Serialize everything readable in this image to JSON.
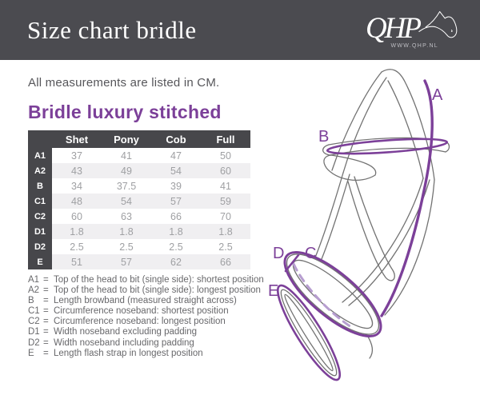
{
  "header": {
    "title": "Size chart bridle",
    "logo_text": "QHP",
    "logo_subtext": "WWW.QHP.NL"
  },
  "intro_text": "All measurements are listed in CM.",
  "section_title": "Bridle luxury stitched",
  "chart_data": {
    "type": "table",
    "title": "Bridle luxury stitched",
    "unit": "CM",
    "columns": [
      "Shet",
      "Pony",
      "Cob",
      "Full"
    ],
    "rows": [
      {
        "label": "A1",
        "values": [
          "37",
          "41",
          "47",
          "50"
        ]
      },
      {
        "label": "A2",
        "values": [
          "43",
          "49",
          "54",
          "60"
        ]
      },
      {
        "label": "B",
        "values": [
          "34",
          "37.5",
          "39",
          "41"
        ]
      },
      {
        "label": "C1",
        "values": [
          "48",
          "54",
          "57",
          "59"
        ]
      },
      {
        "label": "C2",
        "values": [
          "60",
          "63",
          "66",
          "70"
        ]
      },
      {
        "label": "D1",
        "values": [
          "1.8",
          "1.8",
          "1.8",
          "1.8"
        ]
      },
      {
        "label": "D2",
        "values": [
          "2.5",
          "2.5",
          "2.5",
          "2.5"
        ]
      },
      {
        "label": "E",
        "values": [
          "51",
          "57",
          "62",
          "66"
        ]
      }
    ]
  },
  "legend": [
    {
      "label": "A1",
      "eq": "=",
      "desc": "Top of the head to bit (single side): shortest position"
    },
    {
      "label": "A2",
      "eq": "=",
      "desc": "Top of the head to bit (single side): longest position"
    },
    {
      "label": "B",
      "eq": "=",
      "desc": "Length browband (measured straight across)"
    },
    {
      "label": "C1",
      "eq": "=",
      "desc": "Circumference noseband: shortest position"
    },
    {
      "label": "C2",
      "eq": "=",
      "desc": "Circumference noseband: longest position"
    },
    {
      "label": "D1",
      "eq": "=",
      "desc": "Width noseband excluding padding"
    },
    {
      "label": "D2",
      "eq": "=",
      "desc": "Width noseband including padding"
    },
    {
      "label": "E",
      "eq": "=",
      "desc": "Length flash strap in longest position"
    }
  ],
  "diagram": {
    "labels": [
      "A",
      "B",
      "C",
      "D",
      "E"
    ],
    "accent_color": "#7c4099",
    "dash_color": "#b79ed0",
    "line_color": "#727272"
  },
  "colors": {
    "header_bg": "#4b4b50",
    "table_dark": "#47474b",
    "row_stripe": "#f0eff1",
    "purple": "#7c4099",
    "value_text": "#9fa0a3"
  }
}
